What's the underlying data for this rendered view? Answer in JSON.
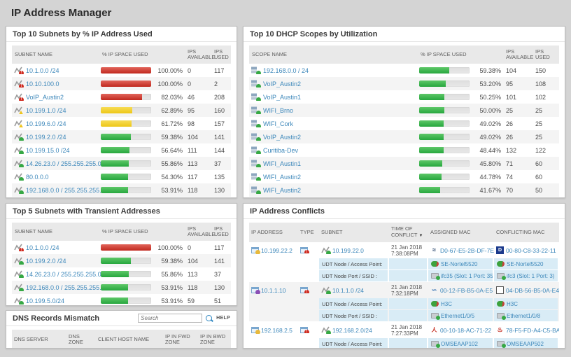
{
  "page": {
    "title": "IP Address Manager"
  },
  "icons": {
    "nortel": "≈",
    "dlink": "D",
    "swoosh": "∽",
    "square": "",
    "avaya": "人",
    "aruba": "♨"
  },
  "colors": {
    "link": "#3c87ba",
    "bar_red": "#c0281e",
    "bar_yellow": "#edc717",
    "bar_green": "#27a73e",
    "subrow_blue": "#d9ecf6",
    "page_bg": "#d4d4d4"
  },
  "subnets": {
    "title": "Top 10 Subnets by % IP Address Used",
    "headers": {
      "name": "SUBNET NAME",
      "pct": "% IP SPACE USED",
      "avail": "IPS AVAILABLE",
      "used": "IPS USED"
    },
    "rows": [
      {
        "name": "10.1.0.0 /24",
        "status": "critical",
        "bar": "red",
        "pct_num": 100,
        "pct": "100.00%",
        "avail": "0",
        "used": "117"
      },
      {
        "name": "10.10.100.0",
        "status": "critical",
        "bar": "red",
        "pct_num": 100,
        "pct": "100.00%",
        "avail": "0",
        "used": "2"
      },
      {
        "name": "VoIP_Austin2",
        "status": "critical",
        "bar": "red",
        "pct_num": 82.03,
        "pct": "82.03%",
        "avail": "46",
        "used": "208"
      },
      {
        "name": "10.199.1.0 /24",
        "status": "warning",
        "bar": "yellow",
        "pct_num": 62.89,
        "pct": "62.89%",
        "avail": "95",
        "used": "160"
      },
      {
        "name": "10.199.6.0 /24",
        "status": "warning",
        "bar": "yellow",
        "pct_num": 61.72,
        "pct": "61.72%",
        "avail": "98",
        "used": "157"
      },
      {
        "name": "10.199.2.0 /24",
        "status": "up",
        "bar": "green",
        "pct_num": 59.38,
        "pct": "59.38%",
        "avail": "104",
        "used": "141"
      },
      {
        "name": "10.199.15.0 /24",
        "status": "up",
        "bar": "green",
        "pct_num": 56.64,
        "pct": "56.64%",
        "avail": "111",
        "used": "144"
      },
      {
        "name": "14.26.23.0 / 255.255.255.0",
        "status": "up",
        "bar": "green",
        "pct_num": 55.86,
        "pct": "55.86%",
        "avail": "113",
        "used": "37"
      },
      {
        "name": "80.0.0.0",
        "status": "up",
        "bar": "green",
        "pct_num": 54.3,
        "pct": "54.30%",
        "avail": "117",
        "used": "135"
      },
      {
        "name": "192.168.0.0 / 255.255.255.0",
        "status": "up",
        "bar": "green",
        "pct_num": 53.91,
        "pct": "53.91%",
        "avail": "118",
        "used": "130"
      }
    ]
  },
  "dhcp": {
    "title": "Top 10 DHCP Scopes by Utilization",
    "headers": {
      "name": "SCOPE NAME",
      "pct": "% IP SPACE USED",
      "avail": "IPS AVAILABLE",
      "used": "IPS USED"
    },
    "rows": [
      {
        "name": "192.168.0.0 / 24",
        "status": "up",
        "bar": "green",
        "pct_num": 59.38,
        "pct": "59.38%",
        "avail": "104",
        "used": "150"
      },
      {
        "name": "VoIP_Austin2",
        "status": "up",
        "bar": "green",
        "pct_num": 53.2,
        "pct": "53.20%",
        "avail": "95",
        "used": "108"
      },
      {
        "name": "VoIP_Austin1",
        "status": "up",
        "bar": "green",
        "pct_num": 50.25,
        "pct": "50.25%",
        "avail": "101",
        "used": "102"
      },
      {
        "name": "WIFI_Brno",
        "status": "up",
        "bar": "green",
        "pct_num": 50,
        "pct": "50.00%",
        "avail": "25",
        "used": "25"
      },
      {
        "name": "WIFI_Cork",
        "status": "up",
        "bar": "green",
        "pct_num": 49.02,
        "pct": "49.02%",
        "avail": "26",
        "used": "25"
      },
      {
        "name": "VoIP_Austin2",
        "status": "up",
        "bar": "green",
        "pct_num": 49.02,
        "pct": "49.02%",
        "avail": "26",
        "used": "25"
      },
      {
        "name": "Curitiba-Dev",
        "status": "up",
        "bar": "green",
        "pct_num": 48.44,
        "pct": "48.44%",
        "avail": "132",
        "used": "122"
      },
      {
        "name": "WIFI_Austin1",
        "status": "up",
        "bar": "green",
        "pct_num": 45.8,
        "pct": "45.80%",
        "avail": "71",
        "used": "60"
      },
      {
        "name": "WIFI_Austin2",
        "status": "up",
        "bar": "green",
        "pct_num": 44.78,
        "pct": "44.78%",
        "avail": "74",
        "used": "60"
      },
      {
        "name": "WIFI_Austin2",
        "status": "up",
        "bar": "green",
        "pct_num": 41.67,
        "pct": "41.67%",
        "avail": "70",
        "used": "50"
      }
    ]
  },
  "transient": {
    "title": "Top 5 Subnets with Transient Addresses",
    "headers": {
      "name": "SUBNET NAME",
      "pct": "% IP SPACE USED",
      "avail": "IPS AVAILABLE",
      "used": "IPS USED"
    },
    "rows": [
      {
        "name": "10.1.0.0 /24",
        "status": "critical",
        "bar": "red",
        "pct_num": 100,
        "pct": "100.00%",
        "avail": "0",
        "used": "117"
      },
      {
        "name": "10.199.2.0 /24",
        "status": "up",
        "bar": "green",
        "pct_num": 59.38,
        "pct": "59.38%",
        "avail": "104",
        "used": "141"
      },
      {
        "name": "14.26.23.0 / 255.255.255.0",
        "status": "up",
        "bar": "green",
        "pct_num": 55.86,
        "pct": "55.86%",
        "avail": "113",
        "used": "37"
      },
      {
        "name": "192.168.0.0 / 255.255.255.0",
        "status": "up",
        "bar": "green",
        "pct_num": 53.91,
        "pct": "53.91%",
        "avail": "118",
        "used": "130"
      },
      {
        "name": "10.199.5.0/24",
        "status": "up",
        "bar": "green",
        "pct_num": 53.91,
        "pct": "53.91%",
        "avail": "59",
        "used": "51"
      }
    ]
  },
  "conflicts": {
    "title": "IP Address Conflicts",
    "headers": {
      "ip": "IP ADDRESS",
      "type": "TYPE",
      "subnet": "SUBNET",
      "time": "TIME OF CONFLICT",
      "sort": "▼",
      "assigned": "ASSIGNED MAC",
      "conflicting": "CONFLICTING MAC"
    },
    "rows": [
      {
        "ip": "10.199.22.2",
        "ip_dot": "yellow",
        "subnet": "10.199.22.0",
        "subnet_status": "up",
        "time_1": "21 Jan 2018",
        "time_2": "7:38:08PM",
        "assigned_mac": "D0-67-E5-2B-DF-7E",
        "assigned_vendor": "nortel",
        "conflicting_mac": "00-80-C8-33-22-11",
        "conflicting_vendor": "dlink",
        "details": [
          {
            "label": "UDT Node / Access Point:",
            "dev": "switch",
            "assigned": "SE-Nortel5520",
            "conflicting": "SE-Nortel5520"
          },
          {
            "label": "UDT Node Port / SSID :",
            "dev": "port",
            "assigned": "ifc35 (Slot: 1 Port: 35)",
            "conflicting": "ifc3 (Slot: 1 Port: 3)"
          }
        ]
      },
      {
        "ip": "10.1.1.10",
        "ip_dot": "purple",
        "subnet": "10.1.1.0 /24",
        "subnet_status": "up",
        "time_1": "21 Jan 2018",
        "time_2": "7:32:18PM",
        "assigned_mac": "00-12-FB-B5-0A-E5",
        "assigned_vendor": "swoosh",
        "conflicting_mac": "04-DB-56-B5-0A-E4",
        "conflicting_vendor": "square",
        "details": [
          {
            "label": "UDT Node / Access Point:",
            "dev": "switch",
            "assigned": "H3C",
            "conflicting": "H3C"
          },
          {
            "label": "UDT Node Port / SSID :",
            "dev": "port",
            "assigned": "Ethernet1/0/5",
            "conflicting": "Ethernet1/0/8"
          }
        ]
      },
      {
        "ip": "192.168.2.5",
        "ip_dot": "yellow",
        "subnet": "192.168.2.0/24",
        "subnet_status": "up",
        "time_1": "21 Jan 2018",
        "time_2": "7:27:33PM",
        "assigned_mac": "00-10-18-AC-71-22",
        "assigned_vendor": "avaya",
        "conflicting_mac": "78-F5-FD-A4-C5-BA",
        "conflicting_vendor": "aruba",
        "details": [
          {
            "label": "UDT Node / Access Point:",
            "dev": "ap",
            "assigned": "OMSEAAP102",
            "conflicting": "OMSEAAP502"
          }
        ]
      }
    ]
  },
  "dns": {
    "title": "DNS Records Mismatch",
    "search_placeholder": "Search",
    "help": "HELP",
    "headers": {
      "server": "DNS SERVER",
      "zone": "DNS ZONE",
      "host": "CLIENT HOST NAME",
      "fwd": "IP IN FWD ZONE",
      "bwd": "IP IN BWD ZONE"
    }
  }
}
